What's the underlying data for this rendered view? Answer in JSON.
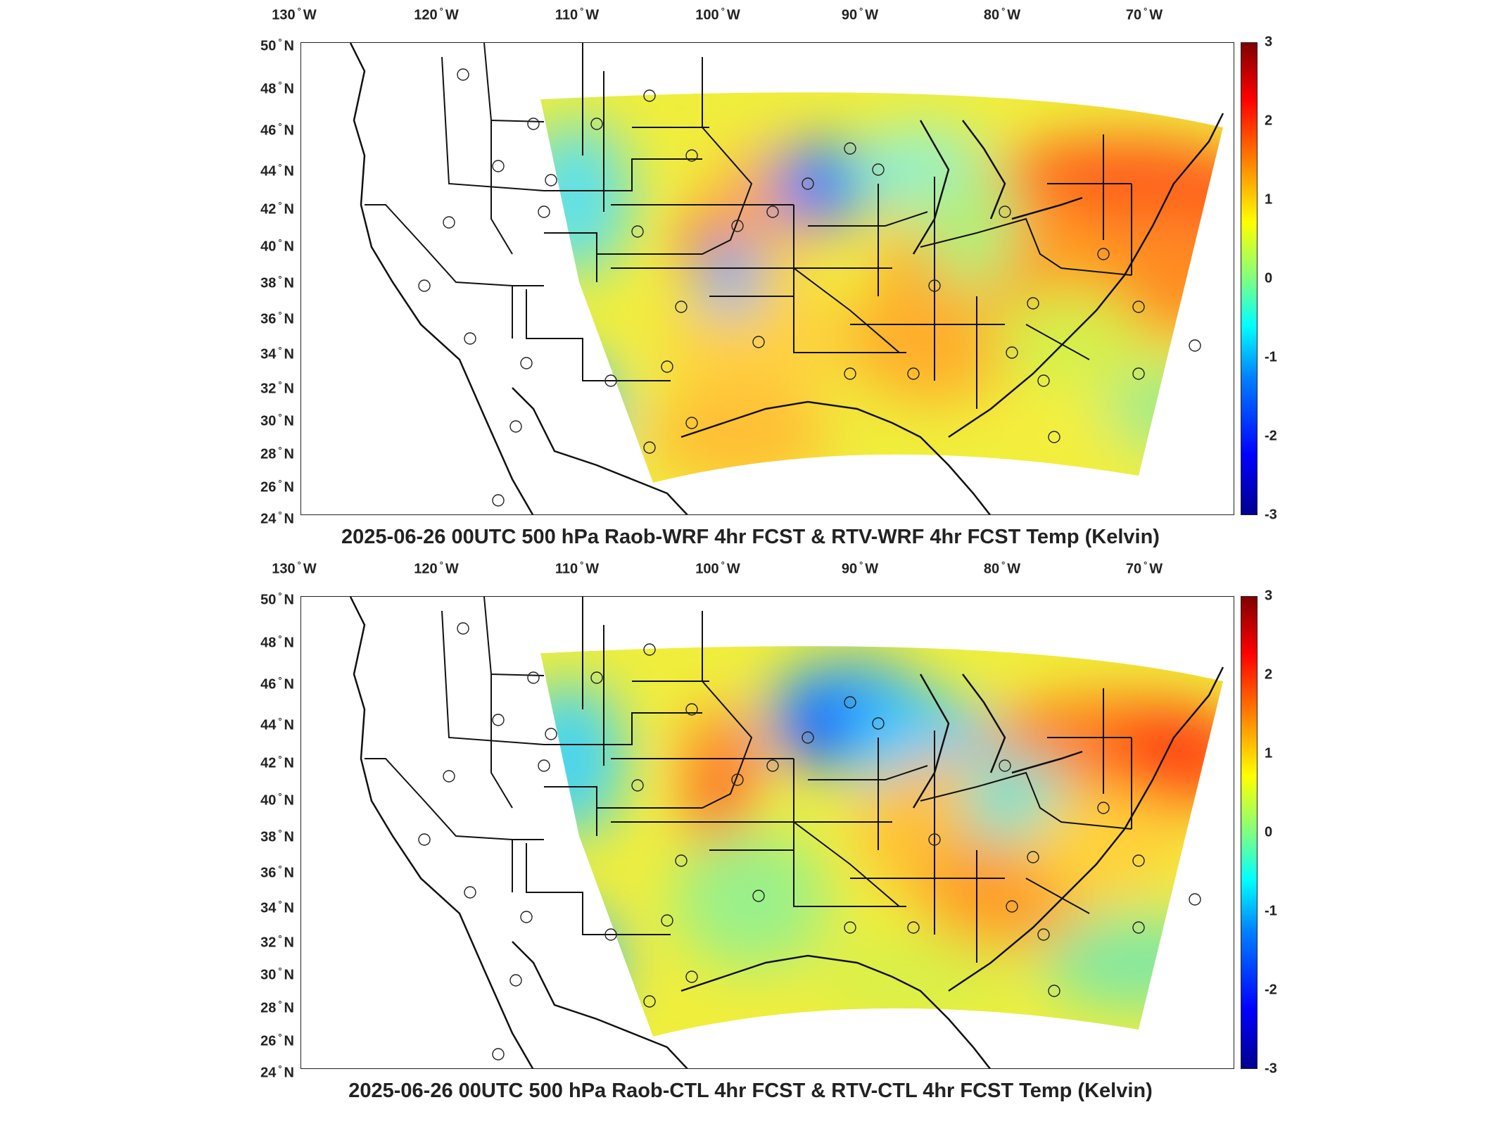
{
  "lon_ticks": [
    {
      "deg": "130",
      "hemi": "W"
    },
    {
      "deg": "120",
      "hemi": "W"
    },
    {
      "deg": "110",
      "hemi": "W"
    },
    {
      "deg": "100",
      "hemi": "W"
    },
    {
      "deg": "90",
      "hemi": "W"
    },
    {
      "deg": "80",
      "hemi": "W"
    },
    {
      "deg": "70",
      "hemi": "W"
    }
  ],
  "lat_ticks": [
    {
      "deg": "50",
      "hemi": "N"
    },
    {
      "deg": "48",
      "hemi": "N"
    },
    {
      "deg": "46",
      "hemi": "N"
    },
    {
      "deg": "44",
      "hemi": "N"
    },
    {
      "deg": "42",
      "hemi": "N"
    },
    {
      "deg": "40",
      "hemi": "N"
    },
    {
      "deg": "38",
      "hemi": "N"
    },
    {
      "deg": "36",
      "hemi": "N"
    },
    {
      "deg": "34",
      "hemi": "N"
    },
    {
      "deg": "32",
      "hemi": "N"
    },
    {
      "deg": "30",
      "hemi": "N"
    },
    {
      "deg": "28",
      "hemi": "N"
    },
    {
      "deg": "26",
      "hemi": "N"
    },
    {
      "deg": "24",
      "hemi": "N"
    }
  ],
  "colorbar": {
    "ticks": [
      "3",
      "2",
      "1",
      "0",
      "-1",
      "-2",
      "-3"
    ],
    "min": -3,
    "max": 3,
    "colormap": "jet"
  },
  "panels": [
    {
      "title": "2025-06-26 00UTC 500 hPa Raob-WRF 4hr FCST & RTV-WRF 4hr FCST Temp (Kelvin)"
    },
    {
      "title": "2025-06-26 00UTC 500 hPa Raob-CTL 4hr FCST & RTV-CTL 4hr FCST Temp (Kelvin)"
    }
  ],
  "colors": {
    "background": "#ffffff",
    "boundary": "#111111",
    "text": "#222222"
  }
}
